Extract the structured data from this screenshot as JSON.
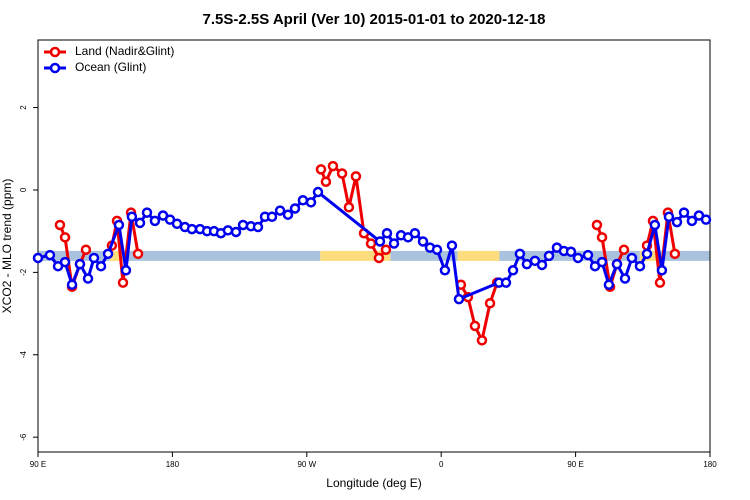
{
  "chart_data": {
    "type": "line",
    "title": "7.5S-2.5S April (Ver 10)   2015-01-01 to 2020-12-18",
    "xlabel": "Longitude (deg E)",
    "ylabel": "XCO2 - MLO trend (ppm)",
    "xlim": [
      90,
      540
    ],
    "ylim": [
      -6.36,
      3.64
    ],
    "xticks": [
      {
        "value": 90,
        "label": "90 E"
      },
      180,
      {
        "value": 270,
        "label": "90 W"
      },
      {
        "value": 360,
        "label": "0"
      },
      {
        "value": 450,
        "label": "90 E"
      },
      {
        "value": 540,
        "label": "180"
      }
    ],
    "yticks": [
      2,
      0,
      -2,
      -4,
      -6
    ],
    "legend": "top-left",
    "band": {
      "value": -1.6,
      "segments": [
        {
          "from": 90,
          "to": 138,
          "color": "#a9c3df"
        },
        {
          "from": 138,
          "to": 148,
          "color": "#fcdc7c"
        },
        {
          "from": 148,
          "to": 279,
          "color": "#a9c3df"
        },
        {
          "from": 279,
          "to": 326,
          "color": "#fcdc7c"
        },
        {
          "from": 326,
          "to": 371,
          "color": "#a9c3df"
        },
        {
          "from": 371,
          "to": 399,
          "color": "#fcdc7c"
        },
        {
          "from": 399,
          "to": 493,
          "color": "#a9c3df"
        },
        {
          "from": 493,
          "to": 507,
          "color": "#fcdc7c"
        },
        {
          "from": 507,
          "to": 540,
          "color": "#a9c3df"
        }
      ]
    },
    "series": [
      {
        "name": "Land (Nadir&Glint)",
        "color": "#ee0000",
        "x": [
          104.7,
          108.1,
          112.8,
          118.1,
          122.1,
          null,
          139.5,
          142.9,
          146.9,
          152.3,
          157,
          null,
          279.5,
          282.8,
          287.5,
          293.6,
          298.2,
          302.9,
          308.3,
          313,
          318.3,
          323,
          null,
          373.2,
          377.9,
          382.6,
          387.3,
          392.7,
          397.4,
          null,
          464.3,
          467.7,
          473.1,
          477.7,
          482.4,
          null,
          497.8,
          501.8,
          506.5,
          511.8,
          516.5
        ],
        "values": [
          -0.85,
          -1.15,
          -2.35,
          -1.8,
          -1.45,
          null,
          -1.35,
          -0.75,
          -2.25,
          -0.55,
          -1.55,
          null,
          0.5,
          0.2,
          0.58,
          0.4,
          -0.42,
          0.33,
          -1.05,
          -1.3,
          -1.65,
          -1.45,
          null,
          -2.3,
          -2.6,
          -3.3,
          -3.65,
          -2.75,
          -2.25,
          null,
          -0.85,
          -1.15,
          -2.35,
          -1.8,
          -1.45,
          null,
          -1.35,
          -0.75,
          -2.25,
          -0.55,
          -1.55
        ]
      },
      {
        "name": "Ocean (Glint)",
        "color": "#0000ee",
        "x": [
          90,
          98,
          103.4,
          108.1,
          112.8,
          118.1,
          123.5,
          127.5,
          132.2,
          136.9,
          144.2,
          148.9,
          152.9,
          158.3,
          163,
          168.3,
          173.7,
          178.4,
          183.1,
          188.4,
          193.1,
          198.5,
          203.2,
          207.9,
          212.5,
          217.2,
          222.6,
          227.3,
          232.6,
          237.3,
          242,
          246.7,
          252.1,
          257.4,
          262.1,
          267.4,
          272.8,
          277.5,
          319,
          323.7,
          328.4,
          333.1,
          337.8,
          342.4,
          347.8,
          352.5,
          357.2,
          362.5,
          367.2,
          371.9,
          398.7,
          403.4,
          408.1,
          412.7,
          417.4,
          422.8,
          427.5,
          432.2,
          437.5,
          442.2,
          446.9,
          451.6,
          458.3,
          463,
          467.7,
          472.3,
          477.7,
          483.1,
          487.7,
          493.1,
          497.8,
          503.1,
          507.8,
          512.5,
          517.9,
          522.6,
          527.9,
          532.6,
          537.3
        ],
        "values": [
          -1.65,
          -1.58,
          -1.85,
          -1.75,
          -2.3,
          -1.8,
          -2.15,
          -1.65,
          -1.85,
          -1.55,
          -0.85,
          -1.95,
          -0.65,
          -0.8,
          -0.55,
          -0.75,
          -0.62,
          -0.72,
          -0.82,
          -0.9,
          -0.95,
          -0.95,
          -1.0,
          -1.0,
          -1.05,
          -0.98,
          -1.02,
          -0.85,
          -0.88,
          -0.9,
          -0.65,
          -0.65,
          -0.5,
          -0.6,
          -0.45,
          -0.25,
          -0.3,
          -0.05,
          -1.25,
          -1.05,
          -1.3,
          -1.1,
          -1.15,
          -1.05,
          -1.25,
          -1.4,
          -1.45,
          -1.95,
          -1.35,
          -2.65,
          -2.25,
          -2.25,
          -1.95,
          -1.55,
          -1.8,
          -1.72,
          -1.82,
          -1.6,
          -1.4,
          -1.48,
          -1.5,
          -1.65,
          -1.58,
          -1.85,
          -1.75,
          -2.3,
          -1.8,
          -2.15,
          -1.65,
          -1.85,
          -1.55,
          -0.85,
          -1.95,
          -0.65,
          -0.78,
          -0.55,
          -0.75,
          -0.62,
          -0.72
        ]
      }
    ]
  }
}
